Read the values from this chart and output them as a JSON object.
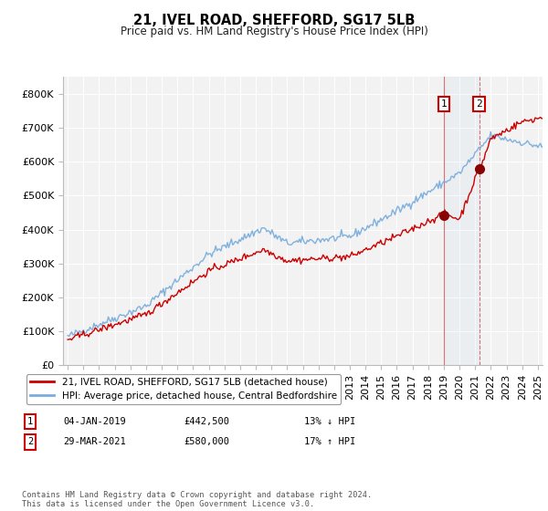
{
  "title1": "21, IVEL ROAD, SHEFFORD, SG17 5LB",
  "title2": "Price paid vs. HM Land Registry's House Price Index (HPI)",
  "background_color": "#ffffff",
  "plot_bg_color": "#f2f2f2",
  "legend1": "21, IVEL ROAD, SHEFFORD, SG17 5LB (detached house)",
  "legend2": "HPI: Average price, detached house, Central Bedfordshire",
  "footer": "Contains HM Land Registry data © Crown copyright and database right 2024.\nThis data is licensed under the Open Government Licence v3.0.",
  "transaction1_date": "04-JAN-2019",
  "transaction1_price": "£442,500",
  "transaction1_hpi": "13% ↓ HPI",
  "transaction2_date": "29-MAR-2021",
  "transaction2_price": "£580,000",
  "transaction2_hpi": "17% ↑ HPI",
  "hpi_color": "#7aaddc",
  "price_color": "#cc0000",
  "transaction1_x": 2019.01,
  "transaction1_y": 442500,
  "transaction2_x": 2021.25,
  "transaction2_y": 580000,
  "ylim": [
    0,
    850000
  ],
  "xlim": [
    1994.7,
    2025.3
  ],
  "yticks": [
    0,
    100000,
    200000,
    300000,
    400000,
    500000,
    600000,
    700000,
    800000
  ],
  "ytick_labels": [
    "£0",
    "£100K",
    "£200K",
    "£300K",
    "£400K",
    "£500K",
    "£600K",
    "£700K",
    "£800K"
  ]
}
